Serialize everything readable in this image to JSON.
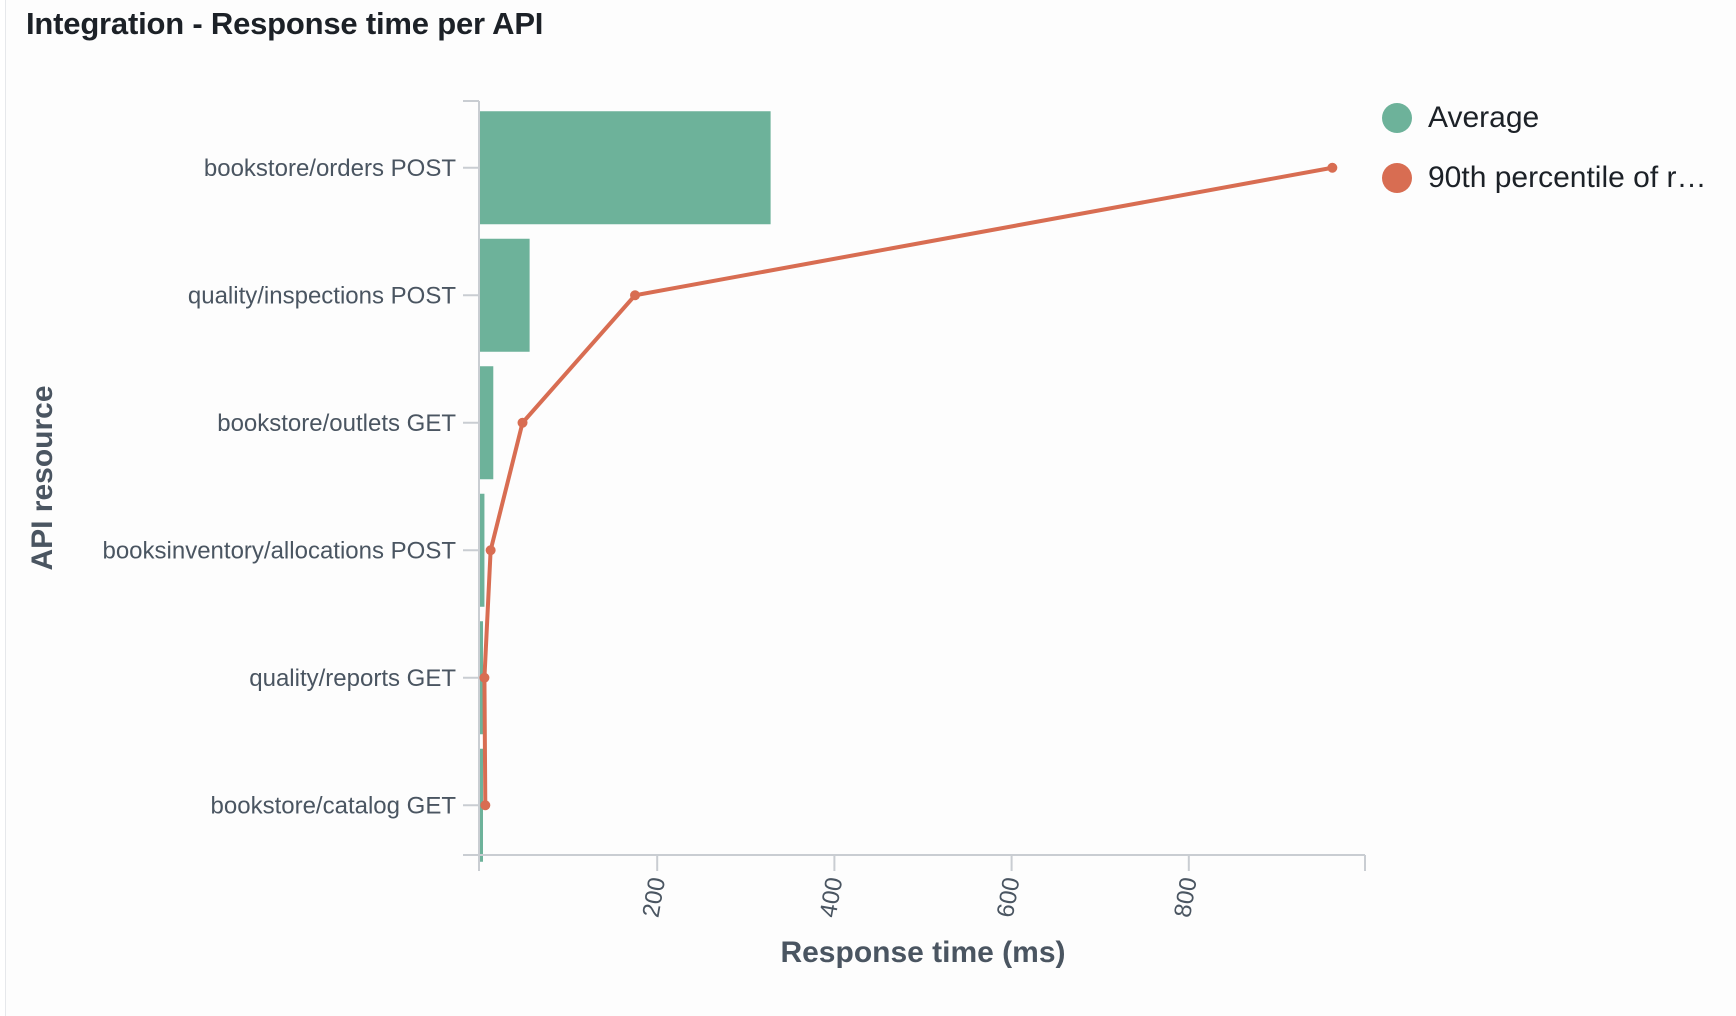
{
  "panel": {
    "title": "Integration - Response time per API"
  },
  "colors": {
    "average": "#6db29a",
    "p90": "#d86d52",
    "axis": "#c9cdd2",
    "text": "#4a5561"
  },
  "legend": {
    "items": [
      {
        "label": "Average",
        "color": "#6db29a"
      },
      {
        "label": "90th percentile of r…",
        "color": "#d86d52"
      }
    ]
  },
  "chart_data": {
    "type": "bar",
    "orientation": "horizontal",
    "title": "Integration - Response time per API",
    "xlabel": "Response time (ms)",
    "ylabel": "API resource",
    "xlim": [
      0,
      900
    ],
    "xticks": [
      "200",
      "400",
      "600",
      "800"
    ],
    "xtick_values": [
      200,
      400,
      600,
      800
    ],
    "categories": [
      "bookstore/orders POST",
      "quality/inspections POST",
      "bookstore/outlets GET",
      "booksinventory/allocations POST",
      "quality/reports GET",
      "bookstore/catalog GET"
    ],
    "series": [
      {
        "name": "Average",
        "type": "bar",
        "values": [
          328,
          56,
          15,
          5,
          3,
          3
        ]
      },
      {
        "name": "90th percentile of r…",
        "type": "line",
        "values": [
          962,
          175,
          48,
          12,
          5,
          6
        ]
      }
    ],
    "legend_position": "top-right",
    "grid": false
  }
}
